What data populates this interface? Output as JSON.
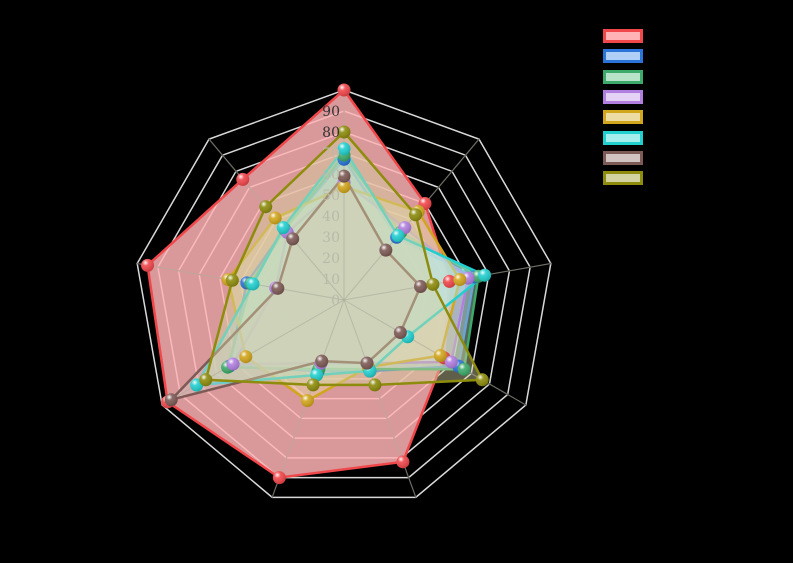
{
  "chart_data": {
    "type": "radar",
    "title": "",
    "axes": [
      "",
      "",
      "",
      "",
      "",
      "",
      "",
      "",
      ""
    ],
    "radial_ticks": [
      "0",
      "10",
      "20",
      "30",
      "40",
      "50",
      "60",
      "70",
      "80",
      "90"
    ],
    "rlim": [
      0,
      100
    ],
    "grid": true,
    "legend_position": "top-right",
    "series": [
      {
        "name": "",
        "color": "#f0474b",
        "fill": "#ffb3b5",
        "values": [
          100,
          60,
          51,
          55,
          82,
          90,
          97,
          95,
          75
        ]
      },
      {
        "name": "",
        "color": "#2a73d9",
        "fill": "#b0cff7",
        "values": [
          67,
          39,
          63,
          63,
          36,
          36,
          63,
          47,
          44
        ]
      },
      {
        "name": "",
        "color": "#3caa6a",
        "fill": "#b7e3c8",
        "values": [
          69,
          42,
          65,
          66,
          35,
          35,
          64,
          45,
          44
        ]
      },
      {
        "name": "",
        "color": "#b07fdf",
        "fill": "#e3d2f6",
        "values": [
          56,
          45,
          60,
          59,
          32,
          32,
          61,
          33,
          42
        ]
      },
      {
        "name": "",
        "color": "#d1a51c",
        "fill": "#ecdba3",
        "values": [
          54,
          55,
          56,
          53,
          34,
          51,
          54,
          56,
          51
        ]
      },
      {
        "name": "",
        "color": "#22cfcf",
        "fill": "#a5eeee",
        "values": [
          72,
          40,
          68,
          35,
          36,
          38,
          81,
          44,
          45
        ]
      },
      {
        "name": "",
        "color": "#7d5a55",
        "fill": "#d1c3c1",
        "values": [
          59,
          31,
          37,
          31,
          32,
          31,
          95,
          32,
          38
        ]
      },
      {
        "name": "",
        "color": "#8d8c0d",
        "fill": "#d3d3a2",
        "values": [
          80,
          53,
          43,
          76,
          43,
          43,
          76,
          54,
          58
        ]
      }
    ]
  }
}
